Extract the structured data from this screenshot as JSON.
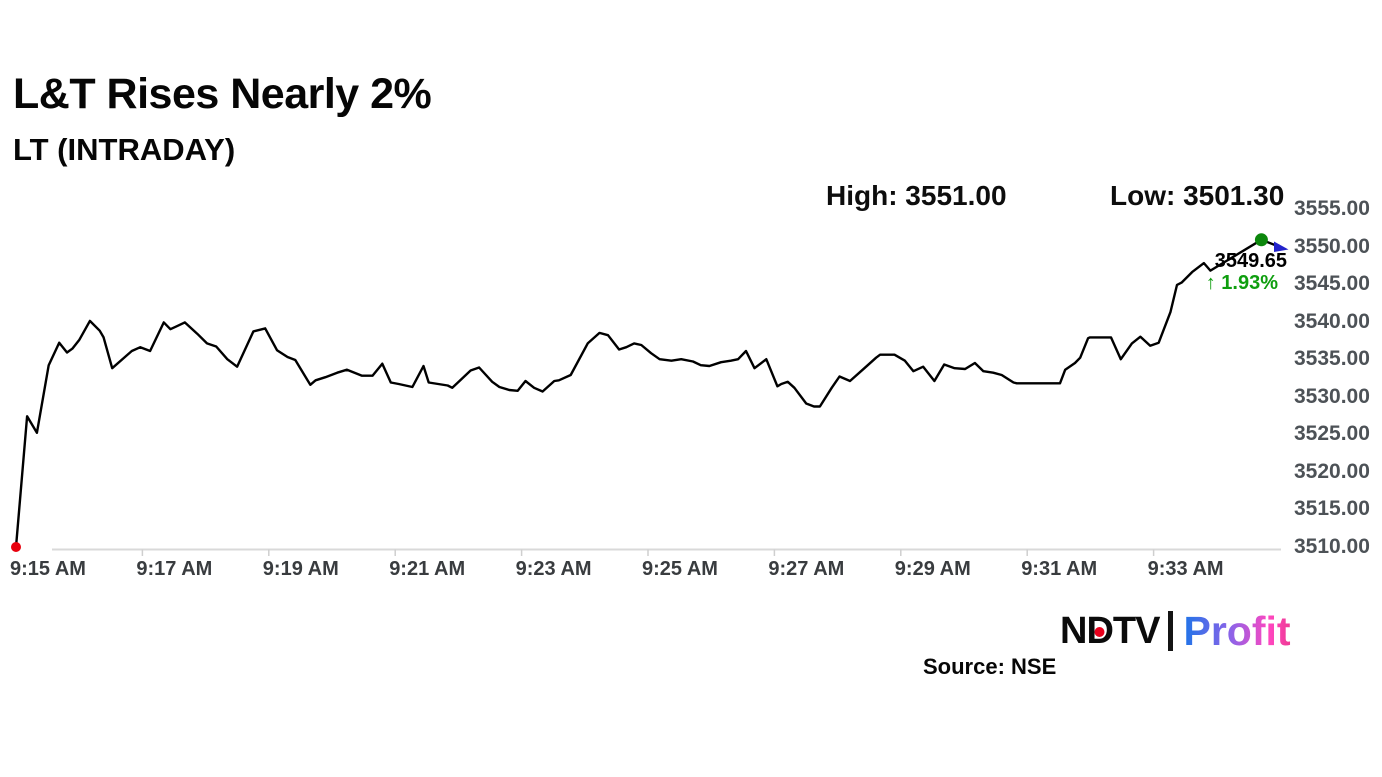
{
  "page": {
    "title": "L&T Rises Nearly 2%",
    "subtitle": "LT (INTRADAY)",
    "stats": {
      "high": "High: 3551.00",
      "low": "Low: 3501.30"
    },
    "callout": {
      "price": "3549.65",
      "change": "↑ 1.93%",
      "change_color": "#0f9e0f"
    },
    "source": "Source: NSE",
    "logo": {
      "ndtv_n": "N",
      "ndtv_d": "D",
      "ndtv_tv": "TV",
      "ndtv_color": "#0b0b0b",
      "ndtv_dot_color": "#e8001c",
      "profit": "Profit",
      "profit_gradient": [
        "#1e74e8",
        "#8e63e8",
        "#ff47c0",
        "#ee3a93"
      ]
    }
  },
  "chart_data": {
    "type": "line",
    "title": "L&T Rises Nearly 2%",
    "subtitle": "LT (INTRADAY)",
    "symbol": "LT",
    "session_high": 3551.0,
    "session_low": 3501.3,
    "last_price": 3549.65,
    "change_pct": 1.93,
    "grid": "off",
    "x_axis": {
      "tick_labels": [
        "9:15 AM",
        "9:17 AM",
        "9:19 AM",
        "9:21 AM",
        "9:23 AM",
        "9:25 AM",
        "9:27 AM",
        "9:29 AM",
        "9:31 AM",
        "9:33 AM"
      ],
      "tick_minutes": [
        0,
        2,
        4,
        6,
        8,
        10,
        12,
        14,
        16,
        18
      ],
      "axis_color": "#d9d9d9",
      "tick_color": "#cfcfcf"
    },
    "y_axis": {
      "tick_labels": [
        "3555.00",
        "3550.00",
        "3545.00",
        "3540.00",
        "3535.00",
        "3530.00",
        "3525.00",
        "3520.00",
        "3515.00",
        "3510.00"
      ],
      "tick_values": [
        3555,
        3550,
        3545,
        3540,
        3535,
        3530,
        3525,
        3520,
        3515,
        3510
      ],
      "ylim": [
        3510,
        3555
      ],
      "position": "right"
    },
    "xlim_minutes": [
      0,
      19.37
    ],
    "series": [
      {
        "name": "LT intraday price",
        "color": "#000000",
        "points_min_price": [
          [
            0,
            3510
          ],
          [
            0.17,
            3527.4
          ],
          [
            0.32,
            3525.2
          ],
          [
            0.5,
            3534.2
          ],
          [
            0.66,
            3537.2
          ],
          [
            0.78,
            3535.9
          ],
          [
            0.86,
            3536.4
          ],
          [
            0.97,
            3537.6
          ],
          [
            1.13,
            3540.1
          ],
          [
            1.28,
            3538.8
          ],
          [
            1.34,
            3537.9
          ],
          [
            1.47,
            3533.8
          ],
          [
            1.77,
            3536.1
          ],
          [
            1.9,
            3536.6
          ],
          [
            2.05,
            3536.1
          ],
          [
            2.26,
            3539.9
          ],
          [
            2.36,
            3539
          ],
          [
            2.46,
            3539.4
          ],
          [
            2.58,
            3539.9
          ],
          [
            2.77,
            3538.4
          ],
          [
            2.92,
            3537.1
          ],
          [
            3.06,
            3536.7
          ],
          [
            3.23,
            3535
          ],
          [
            3.38,
            3534
          ],
          [
            3.63,
            3538.7
          ],
          [
            3.81,
            3539.1
          ],
          [
            3.99,
            3536.2
          ],
          [
            4.15,
            3535.3
          ],
          [
            4.27,
            3534.9
          ],
          [
            4.5,
            3531.6
          ],
          [
            4.58,
            3532.2
          ],
          [
            4.73,
            3532.6
          ],
          [
            4.91,
            3533.2
          ],
          [
            5.06,
            3533.6
          ],
          [
            5.29,
            3532.8
          ],
          [
            5.45,
            3532.8
          ],
          [
            5.6,
            3534.4
          ],
          [
            5.73,
            3531.9
          ],
          [
            5.85,
            3531.7
          ],
          [
            6.06,
            3531.3
          ],
          [
            6.23,
            3534.1
          ],
          [
            6.31,
            3531.9
          ],
          [
            6.6,
            3531.5
          ],
          [
            6.67,
            3531.2
          ],
          [
            6.95,
            3533.5
          ],
          [
            7.08,
            3533.9
          ],
          [
            7.28,
            3532
          ],
          [
            7.39,
            3531.3
          ],
          [
            7.54,
            3530.9
          ],
          [
            7.67,
            3530.8
          ],
          [
            7.79,
            3532.1
          ],
          [
            7.92,
            3531.2
          ],
          [
            8.05,
            3530.7
          ],
          [
            8.23,
            3532.1
          ],
          [
            8.3,
            3532.2
          ],
          [
            8.48,
            3532.9
          ],
          [
            8.74,
            3537.1
          ],
          [
            8.92,
            3538.5
          ],
          [
            9.05,
            3538.2
          ],
          [
            9.22,
            3536.3
          ],
          [
            9.33,
            3536.6
          ],
          [
            9.45,
            3537.1
          ],
          [
            9.56,
            3536.9
          ],
          [
            9.71,
            3535.8
          ],
          [
            9.84,
            3535
          ],
          [
            10.02,
            3534.8
          ],
          [
            10.17,
            3535
          ],
          [
            10.35,
            3534.7
          ],
          [
            10.47,
            3534.2
          ],
          [
            10.6,
            3534.1
          ],
          [
            10.78,
            3534.6
          ],
          [
            10.93,
            3534.8
          ],
          [
            11.04,
            3535
          ],
          [
            11.16,
            3536.1
          ],
          [
            11.29,
            3533.8
          ],
          [
            11.47,
            3535
          ],
          [
            11.64,
            3531.4
          ],
          [
            11.7,
            3531.7
          ],
          [
            11.8,
            3532
          ],
          [
            11.9,
            3531.2
          ],
          [
            12.08,
            3529.1
          ],
          [
            12.2,
            3528.7
          ],
          [
            12.29,
            3528.7
          ],
          [
            12.47,
            3531.2
          ],
          [
            12.59,
            3532.7
          ],
          [
            12.75,
            3532.1
          ],
          [
            12.97,
            3533.8
          ],
          [
            13.15,
            3535.2
          ],
          [
            13.21,
            3535.6
          ],
          [
            13.43,
            3535.6
          ],
          [
            13.59,
            3534.8
          ],
          [
            13.72,
            3533.4
          ],
          [
            13.87,
            3534
          ],
          [
            14.04,
            3532.1
          ],
          [
            14.19,
            3534.3
          ],
          [
            14.35,
            3533.8
          ],
          [
            14.51,
            3533.7
          ],
          [
            14.66,
            3534.5
          ],
          [
            14.79,
            3533.4
          ],
          [
            14.94,
            3533.2
          ],
          [
            15.07,
            3532.9
          ],
          [
            15.25,
            3531.9
          ],
          [
            15.3,
            3531.8
          ],
          [
            15.83,
            3531.8
          ],
          [
            15.96,
            3531.8
          ],
          [
            16.04,
            3533.6
          ],
          [
            16.19,
            3534.5
          ],
          [
            16.27,
            3535.2
          ],
          [
            16.39,
            3537.8
          ],
          [
            16.42,
            3537.9
          ],
          [
            16.74,
            3537.9
          ],
          [
            16.89,
            3535
          ],
          [
            17.06,
            3537.1
          ],
          [
            17.19,
            3538
          ],
          [
            17.34,
            3536.8
          ],
          [
            17.47,
            3537.2
          ],
          [
            17.65,
            3541.3
          ],
          [
            17.75,
            3544.9
          ],
          [
            17.82,
            3545.2
          ],
          [
            17.98,
            3546.6
          ],
          [
            18.16,
            3547.8
          ],
          [
            18.26,
            3546.8
          ],
          [
            19.04,
            3550.9
          ],
          [
            19.37,
            3549.8
          ]
        ]
      }
    ],
    "markers": {
      "session_low_start": {
        "minute": 0,
        "price": 3510.0,
        "color": "#e8000d",
        "shape": "circle"
      },
      "session_high": {
        "minute": 19.04,
        "price": 3550.9,
        "color": "#0c870c",
        "shape": "circle"
      },
      "latest": {
        "minute": 19.37,
        "price": 3549.8,
        "color": "#2323cb",
        "shape": "arrow-right"
      }
    }
  }
}
